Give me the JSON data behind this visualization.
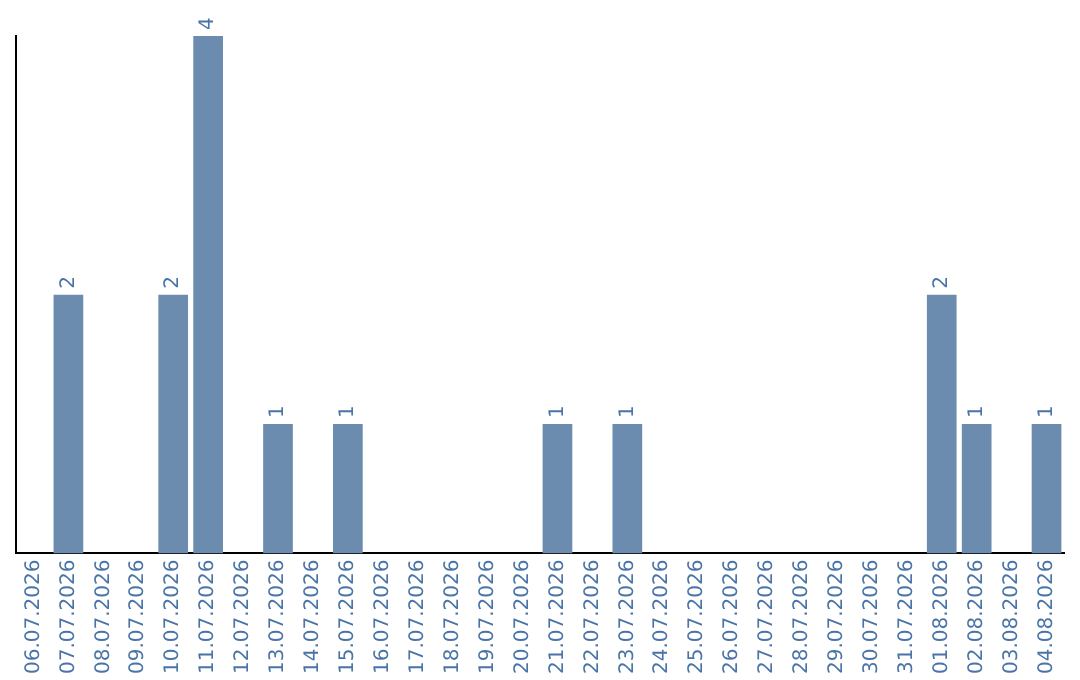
{
  "chart_data": {
    "type": "bar",
    "categories": [
      "06.07.2026",
      "07.07.2026",
      "08.07.2026",
      "09.07.2026",
      "10.07.2026",
      "11.07.2026",
      "12.07.2026",
      "13.07.2026",
      "14.07.2026",
      "15.07.2026",
      "16.07.2026",
      "17.07.2026",
      "18.07.2026",
      "19.07.2026",
      "20.07.2026",
      "21.07.2026",
      "22.07.2026",
      "23.07.2026",
      "24.07.2026",
      "25.07.2026",
      "26.07.2026",
      "27.07.2026",
      "28.07.2026",
      "29.07.2026",
      "30.07.2026",
      "31.07.2026",
      "01.08.2026",
      "02.08.2026",
      "03.08.2026",
      "04.08.2026"
    ],
    "values": [
      0,
      2,
      0,
      0,
      2,
      4,
      0,
      1,
      0,
      1,
      0,
      0,
      0,
      0,
      0,
      1,
      0,
      1,
      0,
      0,
      0,
      0,
      0,
      0,
      0,
      0,
      2,
      1,
      0,
      1
    ],
    "value_labels": [
      null,
      "2",
      null,
      null,
      "2",
      "4",
      null,
      "1",
      null,
      "1",
      null,
      null,
      null,
      null,
      null,
      "1",
      null,
      "1",
      null,
      null,
      null,
      null,
      null,
      null,
      null,
      null,
      "2",
      "1",
      null,
      "1"
    ],
    "color": "#6b8cae",
    "grid": false,
    "legend": false
  }
}
